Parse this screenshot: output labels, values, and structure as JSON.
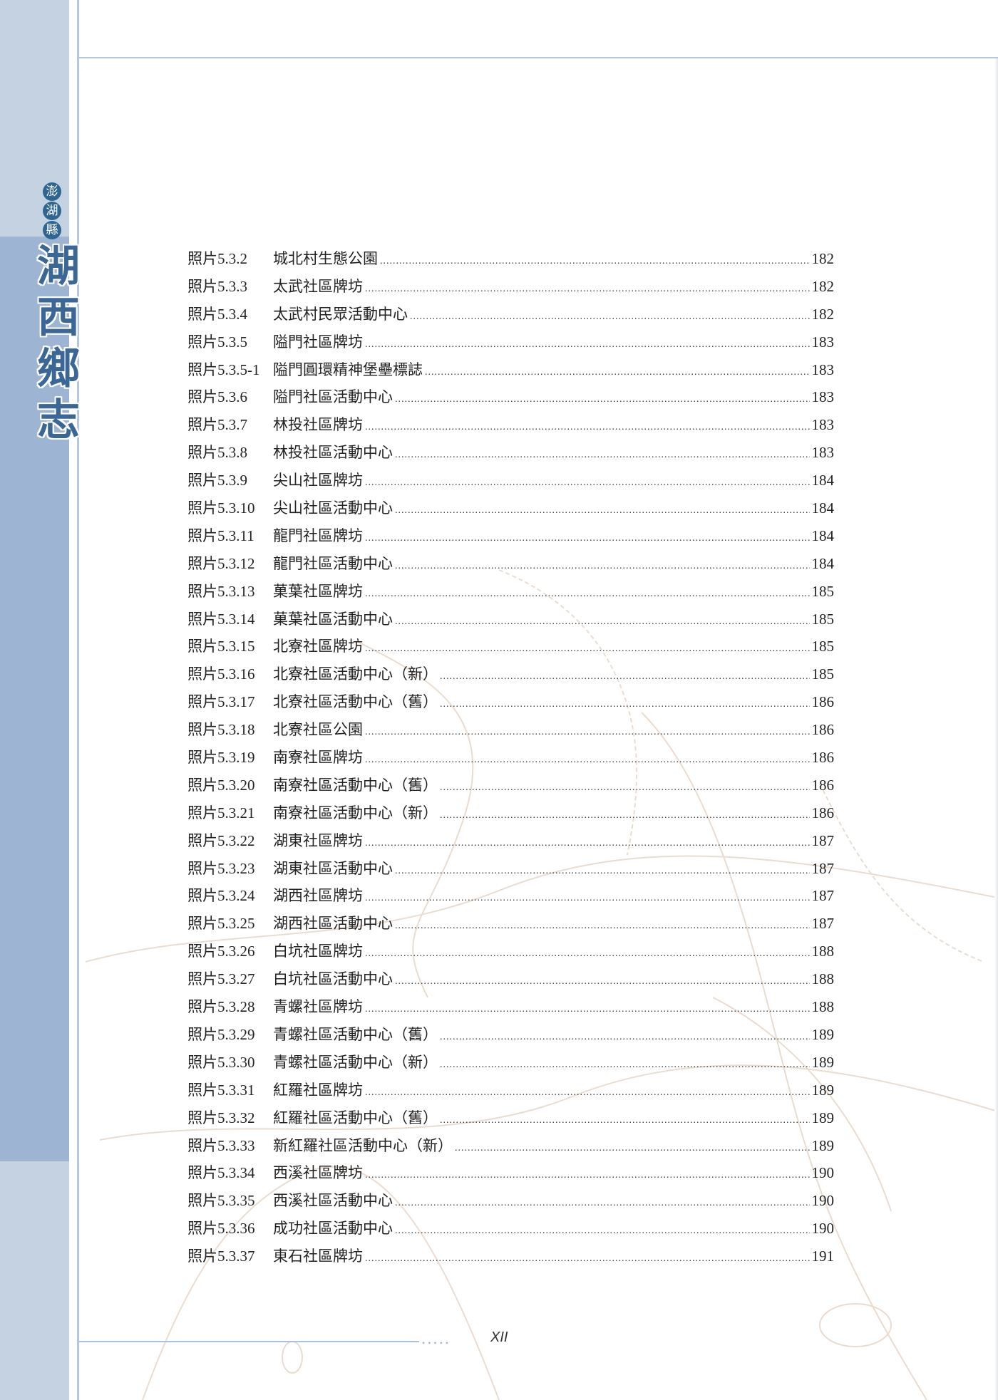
{
  "sidebar": {
    "county_chars": [
      "澎",
      "湖",
      "縣"
    ],
    "title_chars": [
      "湖",
      "西",
      "鄉",
      "志"
    ],
    "colors": {
      "sidebar_light": "#c4d2e1",
      "sidebar_dark": "#9db5d3",
      "title": "#3a6796",
      "badge": "#2f6591"
    }
  },
  "toc": {
    "entries": [
      {
        "label": "照片5.3.2",
        "title": "城北村生態公園",
        "page": "182"
      },
      {
        "label": "照片5.3.3",
        "title": "太武社區牌坊",
        "page": "182"
      },
      {
        "label": "照片5.3.4",
        "title": "太武村民眾活動中心",
        "page": "182"
      },
      {
        "label": "照片5.3.5",
        "title": "隘門社區牌坊",
        "page": "183"
      },
      {
        "label": "照片5.3.5-1",
        "title": "隘門圓環精神堡壘標誌",
        "page": "183"
      },
      {
        "label": "照片5.3.6",
        "title": "隘門社區活動中心",
        "page": "183"
      },
      {
        "label": "照片5.3.7",
        "title": "林投社區牌坊",
        "page": "183"
      },
      {
        "label": "照片5.3.8",
        "title": "林投社區活動中心",
        "page": "183"
      },
      {
        "label": "照片5.3.9",
        "title": "尖山社區牌坊",
        "page": "184"
      },
      {
        "label": "照片5.3.10",
        "title": "尖山社區活動中心",
        "page": "184"
      },
      {
        "label": "照片5.3.11",
        "title": "龍門社區牌坊",
        "page": "184"
      },
      {
        "label": "照片5.3.12",
        "title": "龍門社區活動中心",
        "page": "184"
      },
      {
        "label": "照片5.3.13",
        "title": "菓葉社區牌坊",
        "page": "185"
      },
      {
        "label": "照片5.3.14",
        "title": "菓葉社區活動中心",
        "page": "185"
      },
      {
        "label": "照片5.3.15",
        "title": "北寮社區牌坊",
        "page": "185"
      },
      {
        "label": "照片5.3.16",
        "title": "北寮社區活動中心（新）",
        "page": "185"
      },
      {
        "label": "照片5.3.17",
        "title": "北寮社區活動中心（舊）",
        "page": "186"
      },
      {
        "label": "照片5.3.18",
        "title": "北寮社區公園",
        "page": "186"
      },
      {
        "label": "照片5.3.19",
        "title": "南寮社區牌坊",
        "page": "186"
      },
      {
        "label": "照片5.3.20",
        "title": "南寮社區活動中心（舊）",
        "page": "186"
      },
      {
        "label": "照片5.3.21",
        "title": "南寮社區活動中心（新）",
        "page": "186"
      },
      {
        "label": "照片5.3.22",
        "title": "湖東社區牌坊",
        "page": "187"
      },
      {
        "label": "照片5.3.23",
        "title": "湖東社區活動中心",
        "page": "187"
      },
      {
        "label": "照片5.3.24",
        "title": "湖西社區牌坊",
        "page": "187"
      },
      {
        "label": "照片5.3.25",
        "title": "湖西社區活動中心",
        "page": "187"
      },
      {
        "label": "照片5.3.26",
        "title": "白坑社區牌坊",
        "page": "188"
      },
      {
        "label": "照片5.3.27",
        "title": "白坑社區活動中心",
        "page": "188"
      },
      {
        "label": "照片5.3.28",
        "title": "青螺社區牌坊",
        "page": "188"
      },
      {
        "label": "照片5.3.29",
        "title": "青螺社區活動中心（舊）",
        "page": "189"
      },
      {
        "label": "照片5.3.30",
        "title": "青螺社區活動中心（新）",
        "page": "189"
      },
      {
        "label": "照片5.3.31",
        "title": "紅羅社區牌坊",
        "page": "189"
      },
      {
        "label": "照片5.3.32",
        "title": "紅羅社區活動中心（舊）",
        "page": "189"
      },
      {
        "label": "照片5.3.33",
        "title": "新紅羅社區活動中心（新）",
        "page": "189"
      },
      {
        "label": "照片5.3.34",
        "title": "西溪社區牌坊",
        "page": "190"
      },
      {
        "label": "照片5.3.35",
        "title": "西溪社區活動中心",
        "page": "190"
      },
      {
        "label": "照片5.3.36",
        "title": "成功社區活動中心",
        "page": "190"
      },
      {
        "label": "照片5.3.37",
        "title": "東石社區牌坊",
        "page": "191"
      }
    ]
  },
  "footer": {
    "page_number": "XII"
  }
}
